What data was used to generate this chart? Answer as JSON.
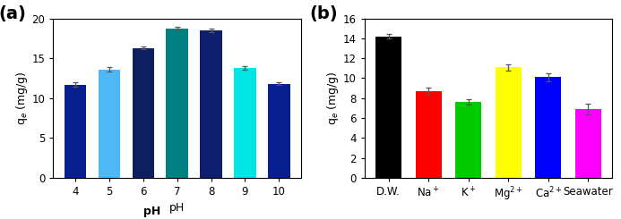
{
  "chart_a": {
    "categories": [
      "4",
      "5",
      "6",
      "7",
      "8",
      "9",
      "10"
    ],
    "values": [
      11.7,
      13.6,
      16.3,
      18.7,
      18.5,
      13.8,
      11.8
    ],
    "errors": [
      0.3,
      0.3,
      0.2,
      0.25,
      0.25,
      0.25,
      0.2
    ],
    "colors": [
      "#0a1f8f",
      "#4db8f5",
      "#0d1f5e",
      "#008080",
      "#0d1f6e",
      "#00e5e5",
      "#0a1f8f"
    ],
    "xlabel": "pH",
    "ylabel": "q_e (mg/g)",
    "ylim": [
      0,
      20
    ],
    "yticks": [
      0,
      5,
      10,
      15,
      20
    ],
    "label": "(a)"
  },
  "chart_b": {
    "categories_raw": [
      "D.W.",
      "Na+",
      "K+",
      "Mg2+",
      "Ca2+",
      "Seawater"
    ],
    "values": [
      14.2,
      8.7,
      7.6,
      11.1,
      10.1,
      6.9
    ],
    "errors": [
      0.25,
      0.4,
      0.25,
      0.3,
      0.4,
      0.55
    ],
    "colors": [
      "#000000",
      "#ff0000",
      "#00cc00",
      "#ffff00",
      "#0000ff",
      "#ff00ff"
    ],
    "xlabel": "",
    "ylabel": "q_e (mg/g)",
    "ylim": [
      0,
      16
    ],
    "yticks": [
      0,
      2,
      4,
      6,
      8,
      10,
      12,
      14,
      16
    ],
    "label": "(b)"
  }
}
